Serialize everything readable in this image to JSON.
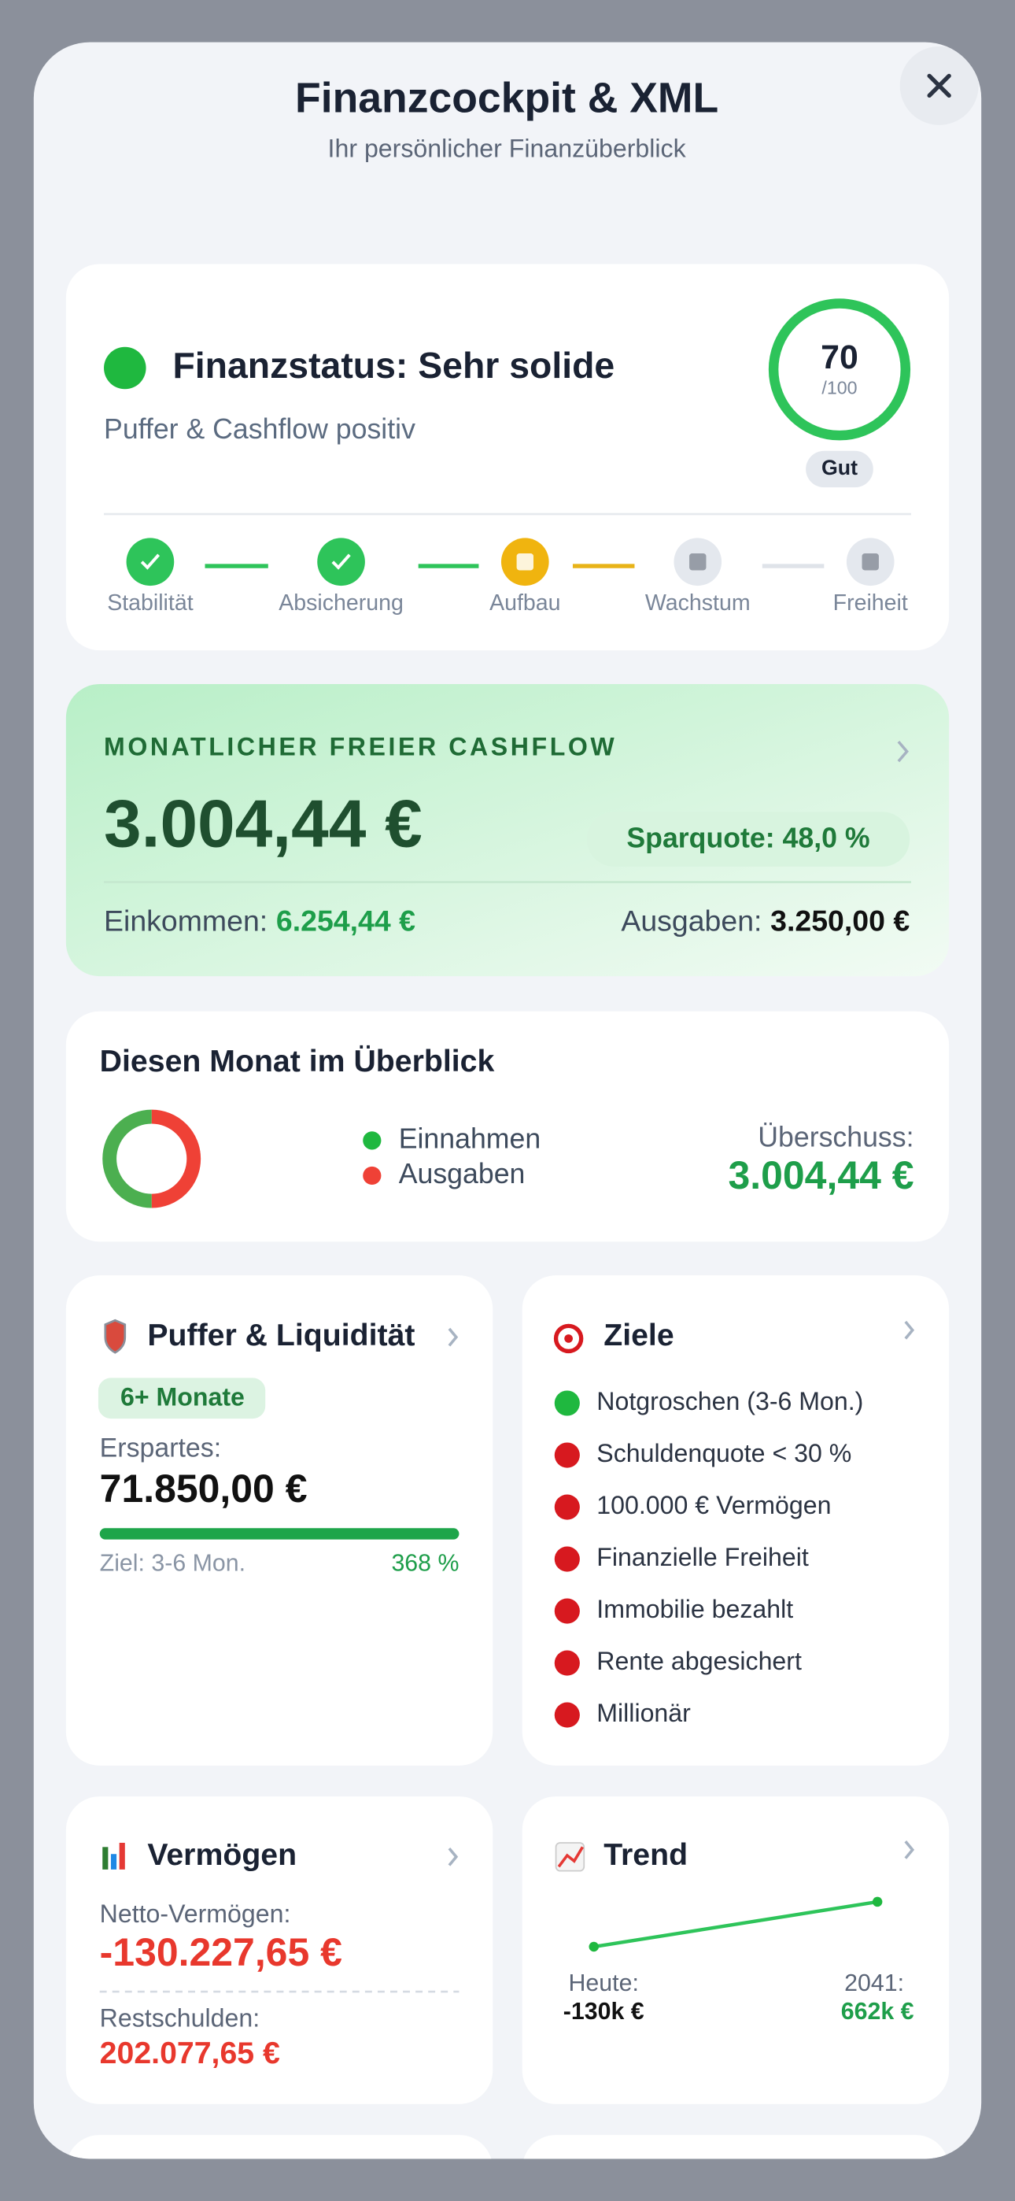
{
  "header": {
    "title": "Finanzcockpit & XML",
    "subtitle": "Ihr persönlicher Finanzüberblick"
  },
  "status": {
    "title": "Finanzstatus: Sehr solide",
    "subtitle": "Puffer & Cashflow positiv",
    "score": "70",
    "score_max": "/100",
    "rating": "Gut",
    "steps": [
      "Stabilität",
      "Absicherung",
      "Aufbau",
      "Wachstum",
      "Freiheit"
    ]
  },
  "cashflow": {
    "label": "MONATLICHER FREIER CASHFLOW",
    "amount": "3.004,44 €",
    "savings_rate": "Sparquote: 48,0 %",
    "income_label": "Einkommen:",
    "income": "6.254,44 €",
    "expenses_label": "Ausgaben:",
    "expenses": "3.250,00 €"
  },
  "overview": {
    "title": "Diesen Monat im Überblick",
    "legend": [
      "Einnahmen",
      "Ausgaben"
    ],
    "surplus_label": "Überschuss:",
    "surplus": "3.004,44 €"
  },
  "buffer": {
    "title": "Puffer & Liquidität",
    "badge": "6+ Monate",
    "saved_label": "Erspartes:",
    "saved": "71.850,00 €",
    "goal": "Ziel: 3-6 Mon.",
    "progress": "368 %"
  },
  "goals": {
    "title": "Ziele",
    "items": [
      {
        "label": "Notgroschen (3-6 Mon.)",
        "color": "#1fb83f"
      },
      {
        "label": "Schuldenquote < 30 %",
        "color": "#d7191f"
      },
      {
        "label": "100.000 € Vermögen",
        "color": "#d7191f"
      },
      {
        "label": "Finanzielle Freiheit",
        "color": "#d7191f"
      },
      {
        "label": "Immobilie bezahlt",
        "color": "#d7191f"
      },
      {
        "label": "Rente abgesichert",
        "color": "#d7191f"
      },
      {
        "label": "Millionär",
        "color": "#d7191f"
      }
    ]
  },
  "wealth": {
    "title": "Vermögen",
    "net_label": "Netto-Vermögen:",
    "net": "-130.227,65 €",
    "debt_label": "Restschulden:",
    "debt": "202.077,65 €"
  },
  "trend": {
    "title": "Trend",
    "start_label": "Heute:",
    "start": "-130k €",
    "end_label": "2041:",
    "end": "662k €"
  }
}
